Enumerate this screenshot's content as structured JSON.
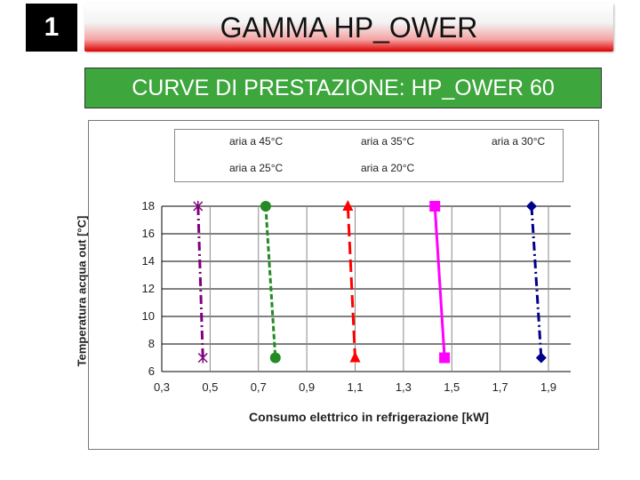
{
  "badge": "1",
  "header": {
    "title": "GAMMA HP_OWER"
  },
  "subtitle": "CURVE DI PRESTAZIONE: HP_OWER 60",
  "chart_data": {
    "type": "line",
    "title": "",
    "xlabel": "Consumo elettrico in refrigerazione [kW]",
    "ylabel": "Temperatura acqua out [°C]",
    "xlim": [
      0.3,
      1.9
    ],
    "ylim": [
      6,
      18
    ],
    "xticks": [
      "0,3",
      "0,5",
      "0,7",
      "0,9",
      "1,1",
      "1,3",
      "1,5",
      "1,7",
      "1,9"
    ],
    "yticks": [
      "6",
      "8",
      "10",
      "12",
      "14",
      "16",
      "18"
    ],
    "grid": true,
    "legend_position": "top",
    "series": [
      {
        "name": "aria a 45°C",
        "color": "#00008b",
        "marker": "diamond",
        "dash": "dash-dot",
        "points": [
          [
            1.83,
            18
          ],
          [
            1.87,
            7
          ]
        ]
      },
      {
        "name": "aria a 35°C",
        "color": "#ff00ff",
        "marker": "square",
        "dash": "solid",
        "points": [
          [
            1.43,
            18
          ],
          [
            1.47,
            7
          ]
        ]
      },
      {
        "name": "aria a 30°C",
        "color": "#ff0000",
        "marker": "triangle",
        "dash": "long-dash",
        "points": [
          [
            1.07,
            18
          ],
          [
            1.1,
            7
          ]
        ]
      },
      {
        "name": "aria a 25°C",
        "color": "#228b22",
        "marker": "circle",
        "dash": "dash",
        "points": [
          [
            0.73,
            18
          ],
          [
            0.77,
            7
          ]
        ]
      },
      {
        "name": "aria a 20°C",
        "color": "#800080",
        "marker": "x",
        "dash": "dash-dot",
        "points": [
          [
            0.45,
            18
          ],
          [
            0.47,
            7
          ]
        ]
      }
    ]
  }
}
